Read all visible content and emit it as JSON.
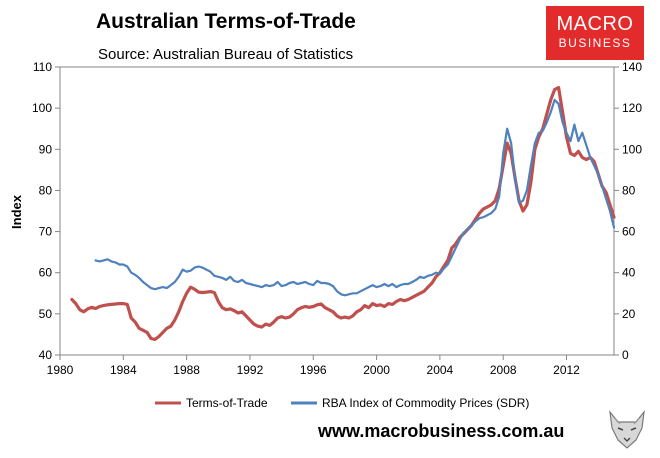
{
  "header": {
    "title": "Australian Terms-of-Trade",
    "subtitle": "Source: Australian Bureau of Statistics"
  },
  "logo": {
    "line1": "MACRO",
    "line2": "BUSINESS",
    "color": "#e42b2b"
  },
  "footer": {
    "website": "www.macrobusiness.com.au",
    "mascot": "wolf-logo-icon"
  },
  "chart_data": {
    "type": "line",
    "ylabel": "Index",
    "xlim": [
      1980,
      2015
    ],
    "ylim_left": [
      40,
      110
    ],
    "ylim_right": [
      0,
      140
    ],
    "x_ticks": [
      1980,
      1984,
      1988,
      1992,
      1996,
      2000,
      2004,
      2008,
      2012
    ],
    "y_ticks_left": [
      40,
      50,
      60,
      70,
      80,
      90,
      100,
      110
    ],
    "y_ticks_right": [
      0,
      20,
      40,
      60,
      80,
      100,
      120,
      140
    ],
    "grid": false,
    "legend_position": "bottom",
    "series": [
      {
        "name": "Terms-of-Trade",
        "axis": "left",
        "color": "#c0504d",
        "points": [
          [
            1980.75,
            53.5
          ],
          [
            1981.0,
            52.5
          ],
          [
            1981.25,
            51.0
          ],
          [
            1981.5,
            50.5
          ],
          [
            1981.75,
            51.2
          ],
          [
            1982.0,
            51.6
          ],
          [
            1982.25,
            51.3
          ],
          [
            1982.5,
            51.8
          ],
          [
            1982.75,
            52.0
          ],
          [
            1983.0,
            52.2
          ],
          [
            1983.25,
            52.3
          ],
          [
            1983.5,
            52.4
          ],
          [
            1983.75,
            52.5
          ],
          [
            1984.0,
            52.5
          ],
          [
            1984.25,
            52.3
          ],
          [
            1984.5,
            49.0
          ],
          [
            1984.75,
            48.0
          ],
          [
            1985.0,
            46.5
          ],
          [
            1985.25,
            46.0
          ],
          [
            1985.5,
            45.5
          ],
          [
            1985.75,
            44.0
          ],
          [
            1986.0,
            43.8
          ],
          [
            1986.25,
            44.5
          ],
          [
            1986.5,
            45.5
          ],
          [
            1986.75,
            46.5
          ],
          [
            1987.0,
            47.0
          ],
          [
            1987.25,
            48.5
          ],
          [
            1987.5,
            50.5
          ],
          [
            1987.75,
            53.0
          ],
          [
            1988.0,
            55.0
          ],
          [
            1988.25,
            56.5
          ],
          [
            1988.5,
            56.0
          ],
          [
            1988.75,
            55.3
          ],
          [
            1989.0,
            55.2
          ],
          [
            1989.25,
            55.3
          ],
          [
            1989.5,
            55.4
          ],
          [
            1989.75,
            55.2
          ],
          [
            1990.0,
            53.0
          ],
          [
            1990.25,
            51.5
          ],
          [
            1990.5,
            51.0
          ],
          [
            1990.75,
            51.2
          ],
          [
            1991.0,
            50.8
          ],
          [
            1991.25,
            50.2
          ],
          [
            1991.5,
            50.5
          ],
          [
            1991.75,
            49.5
          ],
          [
            1992.0,
            48.5
          ],
          [
            1992.25,
            47.5
          ],
          [
            1992.5,
            47.0
          ],
          [
            1992.75,
            46.8
          ],
          [
            1993.0,
            47.5
          ],
          [
            1993.25,
            47.2
          ],
          [
            1993.5,
            48.0
          ],
          [
            1993.75,
            49.0
          ],
          [
            1994.0,
            49.3
          ],
          [
            1994.25,
            49.0
          ],
          [
            1994.5,
            49.2
          ],
          [
            1994.75,
            50.0
          ],
          [
            1995.0,
            51.0
          ],
          [
            1995.25,
            51.5
          ],
          [
            1995.5,
            51.8
          ],
          [
            1995.75,
            51.6
          ],
          [
            1996.0,
            51.8
          ],
          [
            1996.25,
            52.2
          ],
          [
            1996.5,
            52.4
          ],
          [
            1996.75,
            51.5
          ],
          [
            1997.0,
            51.0
          ],
          [
            1997.25,
            50.5
          ],
          [
            1997.5,
            49.5
          ],
          [
            1997.75,
            49.0
          ],
          [
            1998.0,
            49.2
          ],
          [
            1998.25,
            49.0
          ],
          [
            1998.5,
            49.5
          ],
          [
            1998.75,
            50.5
          ],
          [
            1999.0,
            51.0
          ],
          [
            1999.25,
            52.0
          ],
          [
            1999.5,
            51.5
          ],
          [
            1999.75,
            52.5
          ],
          [
            2000.0,
            52.0
          ],
          [
            2000.25,
            52.2
          ],
          [
            2000.5,
            51.8
          ],
          [
            2000.75,
            52.5
          ],
          [
            2001.0,
            52.3
          ],
          [
            2001.25,
            53.0
          ],
          [
            2001.5,
            53.5
          ],
          [
            2001.75,
            53.2
          ],
          [
            2002.0,
            53.5
          ],
          [
            2002.25,
            54.0
          ],
          [
            2002.5,
            54.5
          ],
          [
            2002.75,
            55.0
          ],
          [
            2003.0,
            55.5
          ],
          [
            2003.25,
            56.5
          ],
          [
            2003.5,
            57.5
          ],
          [
            2003.75,
            59.0
          ],
          [
            2004.0,
            60.0
          ],
          [
            2004.25,
            61.5
          ],
          [
            2004.5,
            63.0
          ],
          [
            2004.75,
            66.0
          ],
          [
            2005.0,
            67.0
          ],
          [
            2005.25,
            68.5
          ],
          [
            2005.5,
            69.5
          ],
          [
            2005.75,
            70.5
          ],
          [
            2006.0,
            71.5
          ],
          [
            2006.25,
            73.0
          ],
          [
            2006.5,
            74.5
          ],
          [
            2006.75,
            75.5
          ],
          [
            2007.0,
            76.0
          ],
          [
            2007.25,
            76.5
          ],
          [
            2007.5,
            77.5
          ],
          [
            2007.75,
            80.5
          ],
          [
            2008.0,
            86.0
          ],
          [
            2008.25,
            91.5
          ],
          [
            2008.5,
            89.0
          ],
          [
            2008.75,
            83.0
          ],
          [
            2009.0,
            77.5
          ],
          [
            2009.25,
            75.0
          ],
          [
            2009.5,
            76.5
          ],
          [
            2009.75,
            82.0
          ],
          [
            2010.0,
            90.0
          ],
          [
            2010.25,
            93.0
          ],
          [
            2010.5,
            95.0
          ],
          [
            2010.75,
            98.5
          ],
          [
            2011.0,
            102.0
          ],
          [
            2011.25,
            104.5
          ],
          [
            2011.5,
            105.0
          ],
          [
            2011.75,
            99.0
          ],
          [
            2012.0,
            93.0
          ],
          [
            2012.25,
            89.0
          ],
          [
            2012.5,
            88.5
          ],
          [
            2012.75,
            89.5
          ],
          [
            2013.0,
            88.0
          ],
          [
            2013.25,
            87.5
          ],
          [
            2013.5,
            88.0
          ],
          [
            2013.75,
            87.0
          ],
          [
            2014.0,
            84.0
          ],
          [
            2014.25,
            81.0
          ],
          [
            2014.5,
            79.5
          ],
          [
            2014.75,
            76.5
          ],
          [
            2015.0,
            73.5
          ]
        ]
      },
      {
        "name": "RBA Index of Commodity Prices (SDR)",
        "axis": "right",
        "color": "#4f81bd",
        "points": [
          [
            1982.25,
            46.0
          ],
          [
            1982.5,
            45.5
          ],
          [
            1982.75,
            46.0
          ],
          [
            1983.0,
            46.5
          ],
          [
            1983.25,
            45.5
          ],
          [
            1983.5,
            45.0
          ],
          [
            1983.75,
            44.0
          ],
          [
            1984.0,
            44.0
          ],
          [
            1984.25,
            43.0
          ],
          [
            1984.5,
            40.0
          ],
          [
            1984.75,
            39.0
          ],
          [
            1985.0,
            37.5
          ],
          [
            1985.25,
            35.5
          ],
          [
            1985.5,
            34.0
          ],
          [
            1985.75,
            32.5
          ],
          [
            1986.0,
            32.0
          ],
          [
            1986.25,
            32.5
          ],
          [
            1986.5,
            33.0
          ],
          [
            1986.75,
            32.5
          ],
          [
            1987.0,
            34.0
          ],
          [
            1987.25,
            35.5
          ],
          [
            1987.5,
            38.0
          ],
          [
            1987.75,
            41.5
          ],
          [
            1988.0,
            40.5
          ],
          [
            1988.25,
            41.0
          ],
          [
            1988.5,
            42.5
          ],
          [
            1988.75,
            43.0
          ],
          [
            1989.0,
            42.5
          ],
          [
            1989.25,
            41.5
          ],
          [
            1989.5,
            40.5
          ],
          [
            1989.75,
            38.5
          ],
          [
            1990.0,
            38.0
          ],
          [
            1990.25,
            37.5
          ],
          [
            1990.5,
            36.5
          ],
          [
            1990.75,
            38.0
          ],
          [
            1991.0,
            36.0
          ],
          [
            1991.25,
            35.5
          ],
          [
            1991.5,
            36.5
          ],
          [
            1991.75,
            35.0
          ],
          [
            1992.0,
            34.5
          ],
          [
            1992.25,
            34.0
          ],
          [
            1992.5,
            33.5
          ],
          [
            1992.75,
            33.0
          ],
          [
            1993.0,
            34.0
          ],
          [
            1993.25,
            33.5
          ],
          [
            1993.5,
            34.0
          ],
          [
            1993.75,
            35.5
          ],
          [
            1994.0,
            33.5
          ],
          [
            1994.25,
            34.0
          ],
          [
            1994.5,
            35.0
          ],
          [
            1994.75,
            35.5
          ],
          [
            1995.0,
            34.5
          ],
          [
            1995.25,
            35.0
          ],
          [
            1995.5,
            35.5
          ],
          [
            1995.75,
            34.5
          ],
          [
            1996.0,
            34.0
          ],
          [
            1996.25,
            36.0
          ],
          [
            1996.5,
            35.0
          ],
          [
            1996.75,
            35.0
          ],
          [
            1997.0,
            34.5
          ],
          [
            1997.25,
            33.5
          ],
          [
            1997.5,
            31.0
          ],
          [
            1997.75,
            29.5
          ],
          [
            1998.0,
            29.0
          ],
          [
            1998.25,
            29.5
          ],
          [
            1998.5,
            30.0
          ],
          [
            1998.75,
            30.0
          ],
          [
            1999.0,
            31.0
          ],
          [
            1999.25,
            32.0
          ],
          [
            1999.5,
            33.0
          ],
          [
            1999.75,
            34.0
          ],
          [
            2000.0,
            33.0
          ],
          [
            2000.25,
            33.5
          ],
          [
            2000.5,
            34.5
          ],
          [
            2000.75,
            33.5
          ],
          [
            2001.0,
            34.5
          ],
          [
            2001.25,
            33.0
          ],
          [
            2001.5,
            34.0
          ],
          [
            2001.75,
            34.5
          ],
          [
            2002.0,
            34.5
          ],
          [
            2002.25,
            35.5
          ],
          [
            2002.5,
            36.5
          ],
          [
            2002.75,
            38.0
          ],
          [
            2003.0,
            37.5
          ],
          [
            2003.25,
            38.5
          ],
          [
            2003.5,
            39.0
          ],
          [
            2003.75,
            40.0
          ],
          [
            2004.0,
            39.5
          ],
          [
            2004.25,
            42.0
          ],
          [
            2004.5,
            44.0
          ],
          [
            2004.75,
            48.0
          ],
          [
            2005.0,
            52.0
          ],
          [
            2005.25,
            56.0
          ],
          [
            2005.5,
            59.5
          ],
          [
            2005.75,
            61.0
          ],
          [
            2006.0,
            63.0
          ],
          [
            2006.25,
            65.0
          ],
          [
            2006.5,
            66.5
          ],
          [
            2006.75,
            67.0
          ],
          [
            2007.0,
            68.0
          ],
          [
            2007.25,
            69.0
          ],
          [
            2007.5,
            71.0
          ],
          [
            2007.75,
            77.0
          ],
          [
            2008.0,
            98.0
          ],
          [
            2008.25,
            110.0
          ],
          [
            2008.5,
            103.0
          ],
          [
            2008.75,
            86.0
          ],
          [
            2009.0,
            74.0
          ],
          [
            2009.25,
            75.0
          ],
          [
            2009.5,
            80.0
          ],
          [
            2009.75,
            92.0
          ],
          [
            2010.0,
            103.0
          ],
          [
            2010.25,
            108.0
          ],
          [
            2010.5,
            109.0
          ],
          [
            2010.75,
            113.0
          ],
          [
            2011.0,
            118.0
          ],
          [
            2011.25,
            124.0
          ],
          [
            2011.5,
            122.0
          ],
          [
            2011.75,
            113.0
          ],
          [
            2012.0,
            108.0
          ],
          [
            2012.25,
            104.0
          ],
          [
            2012.5,
            112.0
          ],
          [
            2012.75,
            104.0
          ],
          [
            2013.0,
            108.0
          ],
          [
            2013.25,
            102.0
          ],
          [
            2013.5,
            96.0
          ],
          [
            2013.75,
            92.0
          ],
          [
            2014.0,
            88.0
          ],
          [
            2014.25,
            82.0
          ],
          [
            2014.5,
            76.0
          ],
          [
            2014.75,
            70.0
          ],
          [
            2015.0,
            62.0
          ]
        ]
      }
    ]
  }
}
